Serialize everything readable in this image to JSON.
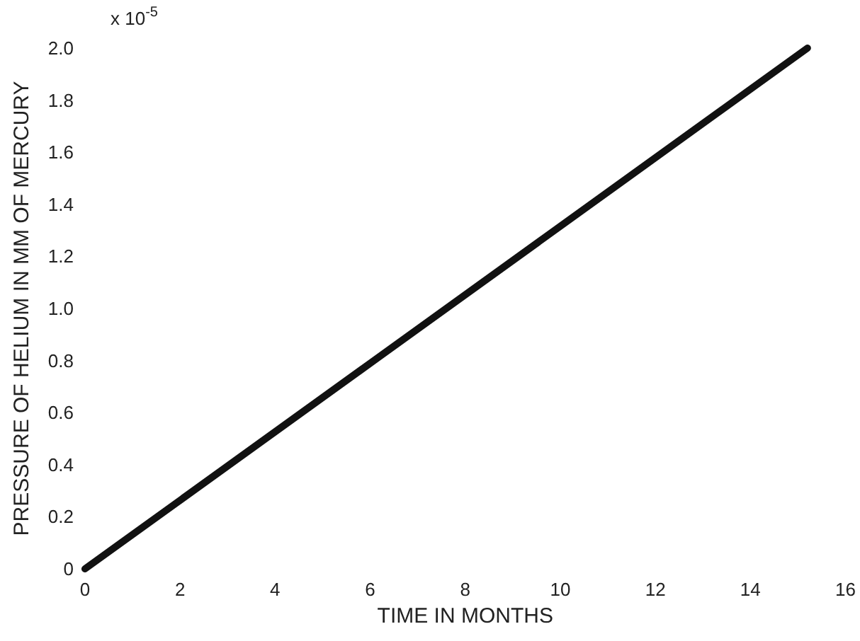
{
  "chart_data": {
    "type": "line",
    "xlabel": "TIME IN MONTHS",
    "ylabel": "PRESSURE OF HELIUM IN MM OF MERCURY",
    "annotations": [
      "x 10$^{-5}$"
    ],
    "x": [
      0,
      15.2
    ],
    "series": [
      {
        "color": "#111111",
        "values": [
          0,
          2.0
        ]
      }
    ],
    "xlim": [
      0,
      16
    ],
    "xticks": [
      0,
      2,
      4,
      6,
      8,
      10,
      12,
      14,
      16
    ],
    "ylim": [
      0,
      2.0
    ],
    "yticks": [
      0,
      0.2,
      0.4,
      0.6,
      0.8,
      {
        "value": 1,
        "label": "1.0"
      },
      1.2,
      1.4,
      1.6,
      1.8,
      {
        "value": 2,
        "label": "2.0"
      }
    ],
    "grid": false,
    "marker": "none",
    "line_style": "solid"
  }
}
